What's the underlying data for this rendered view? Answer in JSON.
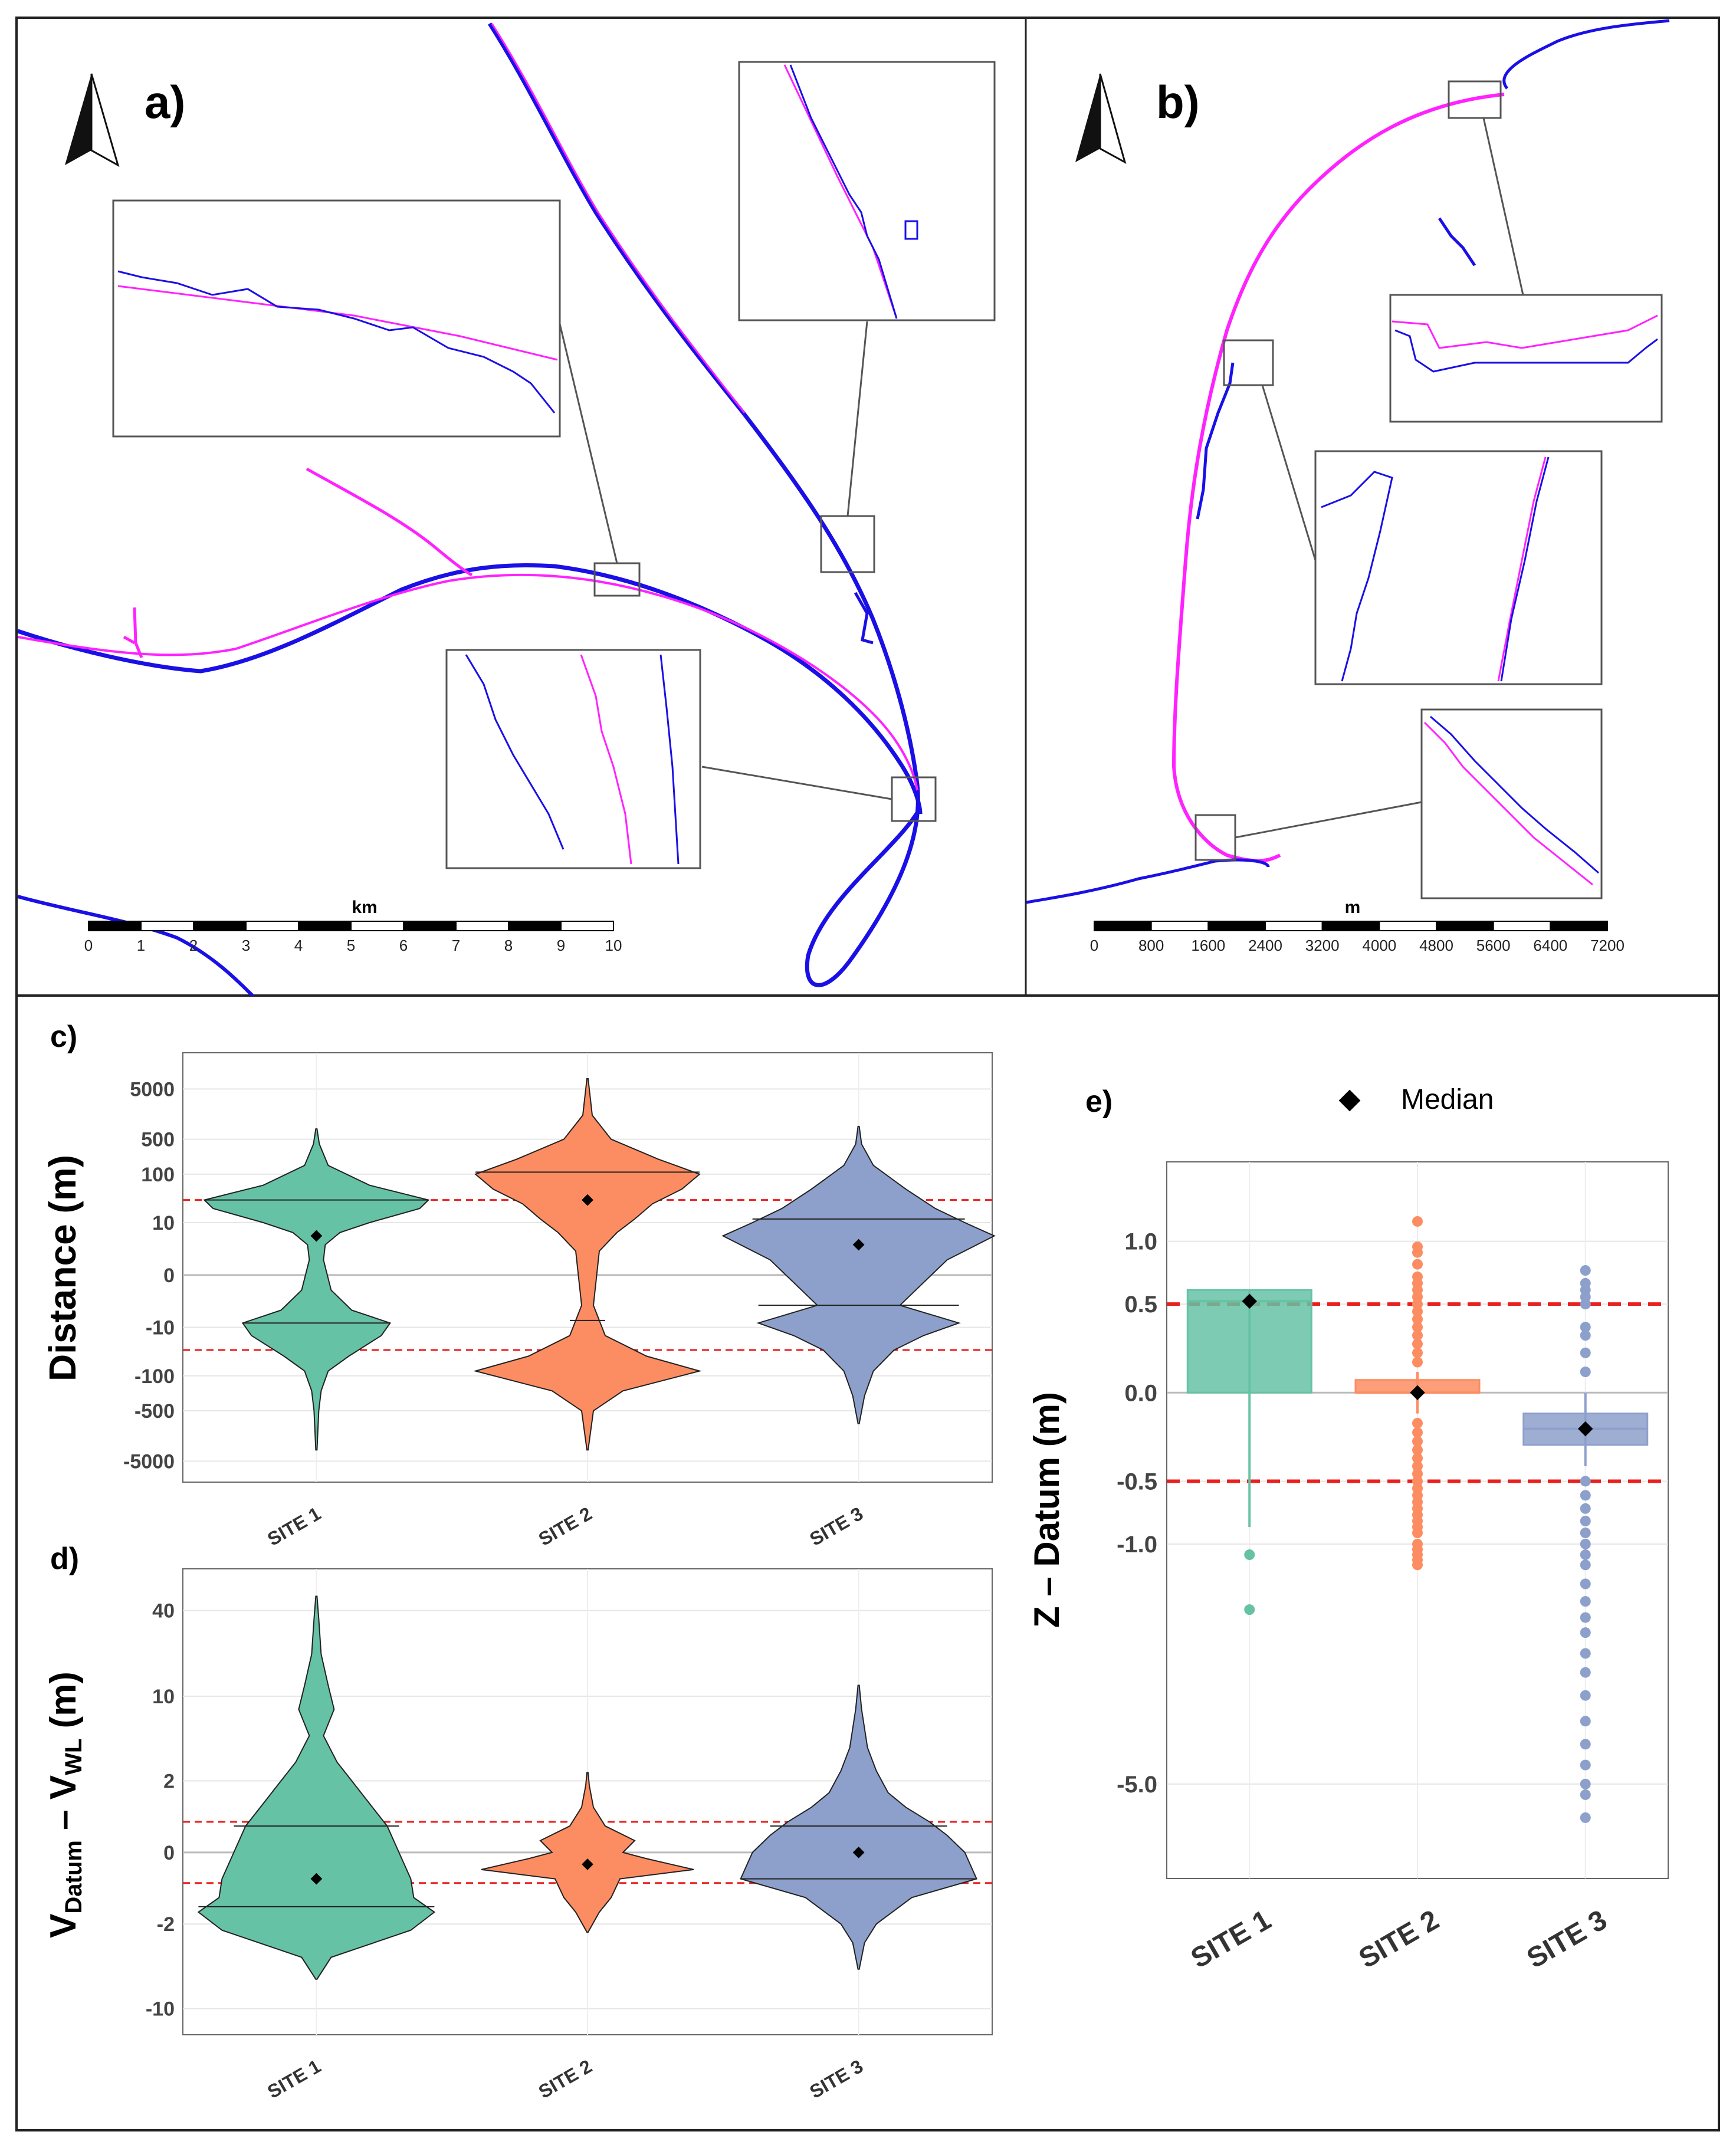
{
  "panels": {
    "a": {
      "label": "a)",
      "scale_unit": "km",
      "scale_ticks": [
        "0",
        "1",
        "2",
        "3",
        "4",
        "5",
        "6",
        "7",
        "8",
        "9",
        "10"
      ]
    },
    "b": {
      "label": "b)",
      "scale_unit": "m",
      "scale_ticks": [
        "0",
        "800",
        "1600",
        "2400",
        "3200",
        "4000",
        "4800",
        "5600",
        "6400",
        "7200"
      ]
    },
    "c": {
      "label": "c)"
    },
    "d": {
      "label": "d)"
    },
    "e": {
      "label": "e)"
    }
  },
  "colors": {
    "site1": "#66c2a5",
    "site2": "#fc8d62",
    "site3": "#8da0cb",
    "shore_blue": "#1a10e6",
    "shore_magenta": "#ff22ff",
    "ref_line": "#e8201f"
  },
  "chart_data": [
    {
      "id": "c",
      "type": "violin",
      "ylabel": "Distance (m)",
      "categories": [
        "SITE 1",
        "SITE 2",
        "SITE 3"
      ],
      "y_ticks": [
        "5000",
        "500",
        "100",
        "10",
        "0",
        "-10",
        "-100",
        "-500",
        "-5000"
      ],
      "y_scale": "pseudo-log",
      "reference_lines": [
        30,
        -30
      ],
      "medians_marked": [
        5,
        30,
        3
      ],
      "quantile_lines": [
        [
          -8,
          30
        ],
        [
          -7,
          110
        ],
        [
          -3,
          12
        ]
      ]
    },
    {
      "id": "d",
      "type": "violin",
      "ylabel_main": "V",
      "ylabel_sub1": "Datum",
      "ylabel_mid": " – V",
      "ylabel_sub2": "WL",
      "ylabel_tail": " (m)",
      "categories": [
        "SITE 1",
        "SITE 2",
        "SITE 3"
      ],
      "y_ticks": [
        "40",
        "10",
        "2",
        "0",
        "-2",
        "-10"
      ],
      "y_scale": "pseudo-log",
      "reference_lines": [
        0.6,
        -0.6
      ],
      "medians_marked": [
        -0.5,
        -0.2,
        0
      ],
      "quantile_lines": [
        [
          -1.3,
          0.5
        ],
        [],
        [
          -0.5,
          0.5
        ]
      ]
    },
    {
      "id": "e",
      "type": "box",
      "ylabel": "Z – Datum (m)",
      "legend": {
        "label": "Median",
        "placement": "top-center"
      },
      "categories": [
        "SITE 1",
        "SITE 2",
        "SITE 3"
      ],
      "y_ticks": [
        "1.0",
        "0.5",
        "0.0",
        "-0.5",
        "-1.0",
        "-5.0"
      ],
      "y_scale": "pseudo-log",
      "reference_lines": [
        0.5,
        -0.5
      ],
      "boxes": [
        {
          "q1": 0.0,
          "median": 0.52,
          "q3": 0.6,
          "whisker_low": -0.85,
          "whisker_high": 0.6,
          "outliers": [
            -1.1,
            -1.7
          ]
        },
        {
          "q1": 0.0,
          "median": 0.0,
          "q3": 0.06,
          "whisker_low": -0.1,
          "whisker_high": 0.1,
          "outliers": [
            1.19,
            0.95,
            0.9,
            0.8,
            0.7,
            0.65,
            0.6,
            0.55,
            0.5,
            0.45,
            0.4,
            0.35,
            0.3,
            0.25,
            0.2,
            0.15,
            -0.15,
            -0.2,
            -0.25,
            -0.3,
            -0.35,
            -0.4,
            -0.45,
            -0.5,
            -0.55,
            -0.6,
            -0.65,
            -0.7,
            -0.75,
            -0.8,
            -0.85,
            -0.9,
            -1.0,
            -1.05,
            -1.1,
            -1.15,
            -1.2
          ]
        },
        {
          "q1": -0.27,
          "median": -0.18,
          "q3": -0.1,
          "whisker_low": -0.4,
          "whisker_high": 0.0,
          "outliers": [
            0.75,
            0.65,
            0.6,
            0.55,
            0.5,
            0.35,
            0.3,
            0.2,
            0.1,
            -0.5,
            -0.6,
            -0.7,
            -0.8,
            -0.9,
            -1.0,
            -1.1,
            -1.2,
            -1.4,
            -1.6,
            -1.8,
            -2.0,
            -2.3,
            -2.6,
            -3.0,
            -3.5,
            -4.0,
            -4.5,
            -5.0,
            -5.3,
            -6.0
          ]
        }
      ]
    }
  ]
}
